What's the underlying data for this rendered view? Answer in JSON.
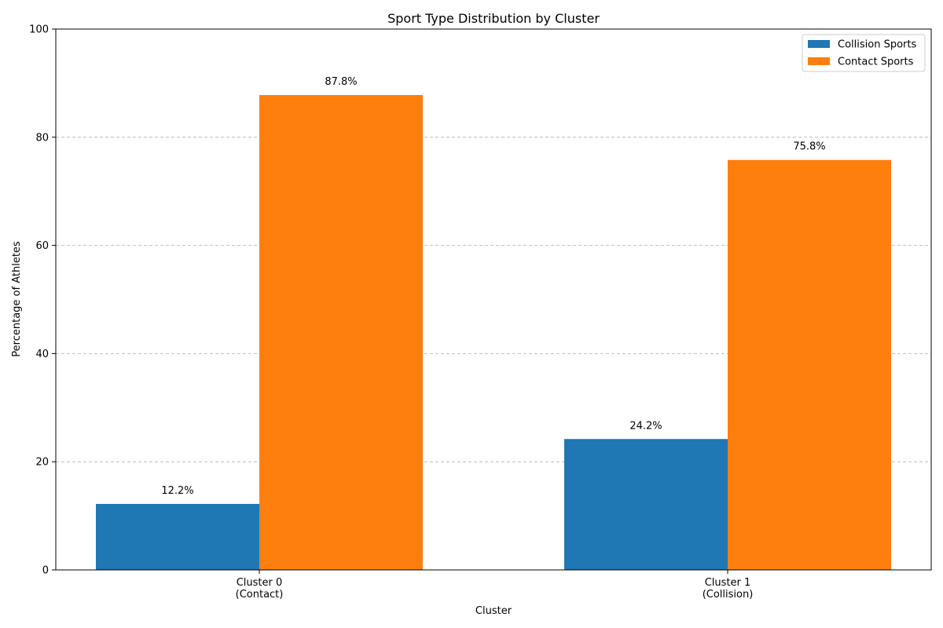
{
  "chart_data": {
    "type": "bar",
    "title": "Sport Type Distribution by Cluster",
    "xlabel": "Cluster",
    "ylabel": "Percentage of Athletes",
    "categories": [
      [
        "Cluster 0",
        "(Contact)"
      ],
      [
        "Cluster 1",
        "(Collision)"
      ]
    ],
    "series": [
      {
        "name": "Collision Sports",
        "color": "#1f77b4",
        "values": [
          12.2,
          24.2
        ],
        "labels": [
          "12.2%",
          "24.2%"
        ]
      },
      {
        "name": "Contact Sports",
        "color": "#ff7f0e",
        "values": [
          87.8,
          75.8
        ],
        "labels": [
          "87.8%",
          "75.8%"
        ]
      }
    ],
    "ylim": [
      0,
      100
    ],
    "yticks": [
      0,
      20,
      40,
      60,
      80,
      100
    ],
    "grid": "y-dashed",
    "legend_position": "top-right"
  }
}
